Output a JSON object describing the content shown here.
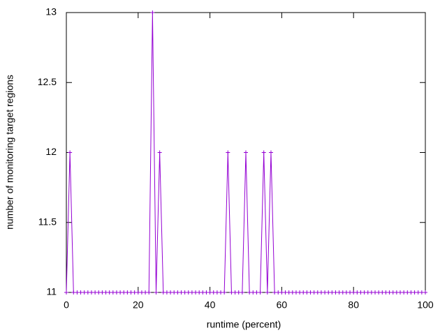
{
  "chart_data": {
    "type": "line",
    "xlabel": "runtime (percent)",
    "ylabel": "number of monitoring target regions",
    "x": [
      0,
      1,
      2,
      3,
      4,
      5,
      6,
      7,
      8,
      9,
      10,
      11,
      12,
      13,
      14,
      15,
      16,
      17,
      18,
      19,
      20,
      21,
      22,
      23,
      24,
      25,
      26,
      27,
      28,
      29,
      30,
      31,
      32,
      33,
      34,
      35,
      36,
      37,
      38,
      39,
      40,
      41,
      42,
      43,
      44,
      45,
      46,
      47,
      48,
      49,
      50,
      51,
      52,
      53,
      54,
      55,
      56,
      57,
      58,
      59,
      60,
      61,
      62,
      63,
      64,
      65,
      66,
      67,
      68,
      69,
      70,
      71,
      72,
      73,
      74,
      75,
      76,
      77,
      78,
      79,
      80,
      81,
      82,
      83,
      84,
      85,
      86,
      87,
      88,
      89,
      90,
      91,
      92,
      93,
      94,
      95,
      96,
      97,
      98,
      99,
      100
    ],
    "series": [
      {
        "color": "#9400d3",
        "values": [
          11,
          12,
          11,
          11,
          11,
          11,
          11,
          11,
          11,
          11,
          11,
          11,
          11,
          11,
          11,
          11,
          11,
          11,
          11,
          11,
          11,
          11,
          11,
          11,
          13,
          11,
          12,
          11,
          11,
          11,
          11,
          11,
          11,
          11,
          11,
          11,
          11,
          11,
          11,
          11,
          11,
          11,
          11,
          11,
          11,
          12,
          11,
          11,
          11,
          11,
          12,
          11,
          11,
          11,
          11,
          12,
          11,
          12,
          11,
          11,
          11,
          11,
          11,
          11,
          11,
          11,
          11,
          11,
          11,
          11,
          11,
          11,
          11,
          11,
          11,
          11,
          11,
          11,
          11,
          11,
          11,
          11,
          11,
          11,
          11,
          11,
          11,
          11,
          11,
          11,
          11,
          11,
          11,
          11,
          11,
          11,
          11,
          11,
          11,
          11,
          11
        ]
      }
    ],
    "xlim": [
      0,
      100
    ],
    "xticks": [
      0,
      20,
      40,
      60,
      80,
      100
    ],
    "ylim": [
      11,
      13
    ],
    "yticks": [
      11,
      11.5,
      12,
      12.5,
      13
    ]
  }
}
